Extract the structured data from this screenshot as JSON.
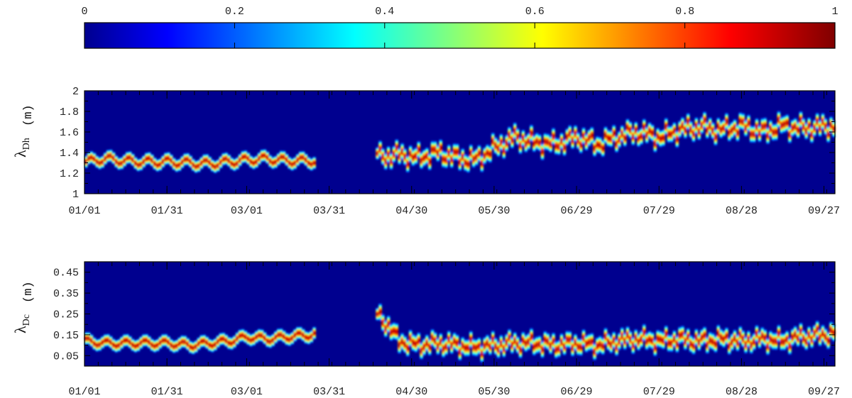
{
  "colorbar": {
    "ticks": [
      "0",
      "0.2",
      "0.4",
      "0.6",
      "0.8",
      "1"
    ],
    "range": [
      0,
      1
    ],
    "colormap": "jet"
  },
  "chart_data": [
    {
      "type": "heatmap",
      "ylabel": "λDh",
      "ylabel_main": "λ",
      "ylabel_sub": "Dh",
      "ylabel_unit": "(m)",
      "ylim": [
        1,
        2
      ],
      "yticks": [
        "1",
        "1.2",
        "1.4",
        "1.6",
        "1.8",
        "2"
      ],
      "ytick_values": [
        1,
        1.2,
        1.4,
        1.6,
        1.8,
        2
      ],
      "xticks": [
        "01/01",
        "01/31",
        "03/01",
        "03/31",
        "04/30",
        "05/30",
        "06/29",
        "07/29",
        "08/28",
        "09/27"
      ],
      "xlim": [
        "01/01",
        "10/01"
      ],
      "data_gap": [
        "03/25",
        "04/17"
      ],
      "peak_wavelength_m": [
        {
          "date": "01/01",
          "value": 1.31
        },
        {
          "date": "01/08",
          "value": 1.34
        },
        {
          "date": "01/15",
          "value": 1.32
        },
        {
          "date": "01/22",
          "value": 1.31
        },
        {
          "date": "01/31",
          "value": 1.31
        },
        {
          "date": "02/08",
          "value": 1.3
        },
        {
          "date": "02/15",
          "value": 1.29
        },
        {
          "date": "02/22",
          "value": 1.31
        },
        {
          "date": "03/01",
          "value": 1.33
        },
        {
          "date": "03/08",
          "value": 1.34
        },
        {
          "date": "03/15",
          "value": 1.32
        },
        {
          "date": "03/24",
          "value": 1.32
        },
        {
          "date": "04/18",
          "value": 1.36
        },
        {
          "date": "04/25",
          "value": 1.38
        },
        {
          "date": "05/02",
          "value": 1.35
        },
        {
          "date": "05/09",
          "value": 1.4
        },
        {
          "date": "05/16",
          "value": 1.35
        },
        {
          "date": "05/23",
          "value": 1.33
        },
        {
          "date": "05/30",
          "value": 1.45
        },
        {
          "date": "06/06",
          "value": 1.55
        },
        {
          "date": "06/13",
          "value": 1.5
        },
        {
          "date": "06/20",
          "value": 1.48
        },
        {
          "date": "06/29",
          "value": 1.55
        },
        {
          "date": "07/06",
          "value": 1.48
        },
        {
          "date": "07/13",
          "value": 1.55
        },
        {
          "date": "07/20",
          "value": 1.6
        },
        {
          "date": "07/29",
          "value": 1.55
        },
        {
          "date": "08/05",
          "value": 1.62
        },
        {
          "date": "08/12",
          "value": 1.65
        },
        {
          "date": "08/20",
          "value": 1.62
        },
        {
          "date": "08/28",
          "value": 1.66
        },
        {
          "date": "09/04",
          "value": 1.6
        },
        {
          "date": "09/11",
          "value": 1.66
        },
        {
          "date": "09/18",
          "value": 1.64
        },
        {
          "date": "09/27",
          "value": 1.65
        },
        {
          "date": "10/01",
          "value": 1.66
        }
      ]
    },
    {
      "type": "heatmap",
      "ylabel": "λDc",
      "ylabel_main": "λ",
      "ylabel_sub": "Dc",
      "ylabel_unit": "(m)",
      "ylim": [
        0,
        0.5
      ],
      "yticks": [
        "0.05",
        "0.15",
        "0.25",
        "0.35",
        "0.45"
      ],
      "ytick_values": [
        0.05,
        0.15,
        0.25,
        0.35,
        0.45
      ],
      "xticks": [
        "01/01",
        "01/31",
        "03/01",
        "03/31",
        "04/30",
        "05/30",
        "06/29",
        "07/29",
        "08/28",
        "09/27"
      ],
      "xlim": [
        "01/01",
        "10/01"
      ],
      "data_gap": [
        "03/25",
        "04/17"
      ],
      "peak_wavelength_m": [
        {
          "date": "01/01",
          "value": 0.12
        },
        {
          "date": "01/08",
          "value": 0.11
        },
        {
          "date": "01/15",
          "value": 0.11
        },
        {
          "date": "01/22",
          "value": 0.11
        },
        {
          "date": "01/31",
          "value": 0.11
        },
        {
          "date": "02/08",
          "value": 0.1
        },
        {
          "date": "02/15",
          "value": 0.11
        },
        {
          "date": "02/22",
          "value": 0.12
        },
        {
          "date": "03/01",
          "value": 0.14
        },
        {
          "date": "03/08",
          "value": 0.13
        },
        {
          "date": "03/15",
          "value": 0.14
        },
        {
          "date": "03/24",
          "value": 0.15
        },
        {
          "date": "04/18",
          "value": 0.24
        },
        {
          "date": "04/25",
          "value": 0.12
        },
        {
          "date": "05/02",
          "value": 0.1
        },
        {
          "date": "05/09",
          "value": 0.11
        },
        {
          "date": "05/16",
          "value": 0.1
        },
        {
          "date": "05/23",
          "value": 0.09
        },
        {
          "date": "05/30",
          "value": 0.1
        },
        {
          "date": "06/06",
          "value": 0.11
        },
        {
          "date": "06/13",
          "value": 0.11
        },
        {
          "date": "06/20",
          "value": 0.1
        },
        {
          "date": "06/29",
          "value": 0.11
        },
        {
          "date": "07/06",
          "value": 0.1
        },
        {
          "date": "07/13",
          "value": 0.12
        },
        {
          "date": "07/20",
          "value": 0.13
        },
        {
          "date": "07/29",
          "value": 0.12
        },
        {
          "date": "08/05",
          "value": 0.13
        },
        {
          "date": "08/12",
          "value": 0.12
        },
        {
          "date": "08/20",
          "value": 0.13
        },
        {
          "date": "08/28",
          "value": 0.12
        },
        {
          "date": "09/04",
          "value": 0.13
        },
        {
          "date": "09/11",
          "value": 0.12
        },
        {
          "date": "09/18",
          "value": 0.14
        },
        {
          "date": "09/27",
          "value": 0.15
        },
        {
          "date": "10/01",
          "value": 0.16
        }
      ]
    }
  ]
}
